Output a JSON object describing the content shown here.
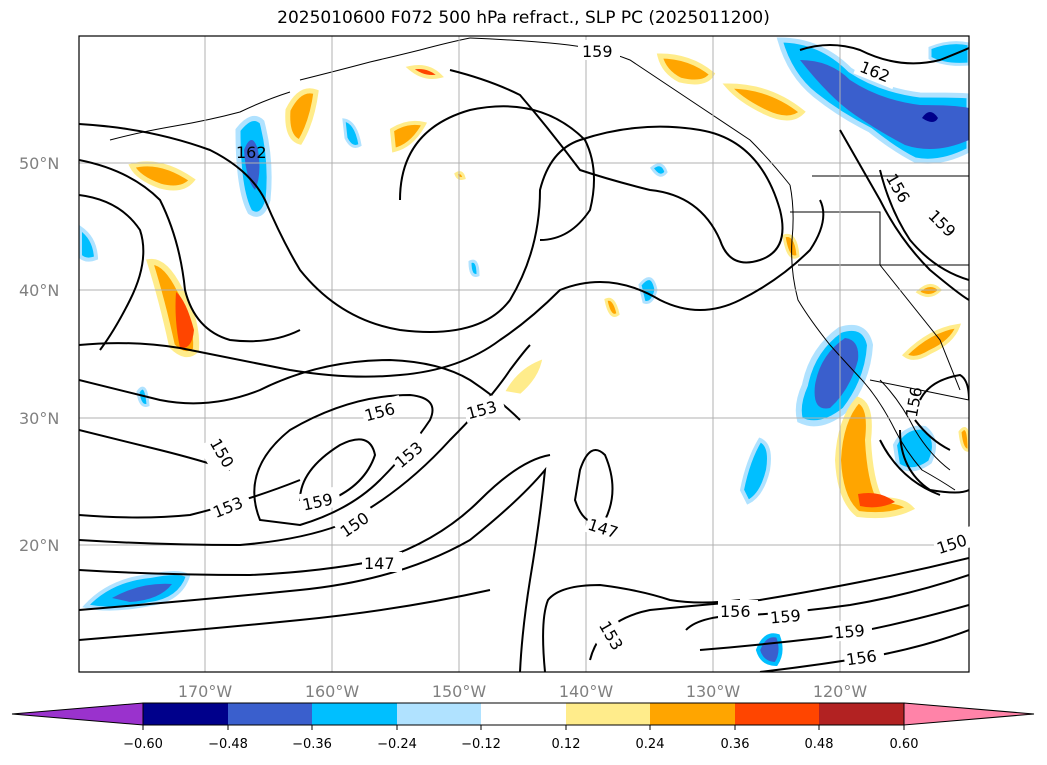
{
  "title": "2025010600 F072 500 hPa refract., SLP PC (2025011200)",
  "lat_labels": [
    "50°N",
    "40°N",
    "30°N",
    "20°N"
  ],
  "lon_labels": [
    "170°W",
    "160°W",
    "150°W",
    "140°W",
    "130°W",
    "120°W"
  ],
  "contour_labels": [
    "159",
    "162",
    "162",
    "156",
    "159",
    "150",
    "153",
    "156",
    "153",
    "153",
    "159",
    "150",
    "147",
    "147",
    "156",
    "159",
    "159",
    "156",
    "153",
    "150",
    "156"
  ],
  "colorbar": {
    "ticks": [
      "−0.60",
      "−0.48",
      "−0.36",
      "−0.24",
      "−0.12",
      "0.12",
      "0.24",
      "0.36",
      "0.48",
      "0.60"
    ],
    "colors": [
      "#9a32cd",
      "#00008b",
      "#3a5fcd",
      "#00bfff",
      "#b0e2ff",
      "#ffffff",
      "#ffec8b",
      "#ffa500",
      "#ff4500",
      "#b22222",
      "#ff83a8"
    ]
  }
}
